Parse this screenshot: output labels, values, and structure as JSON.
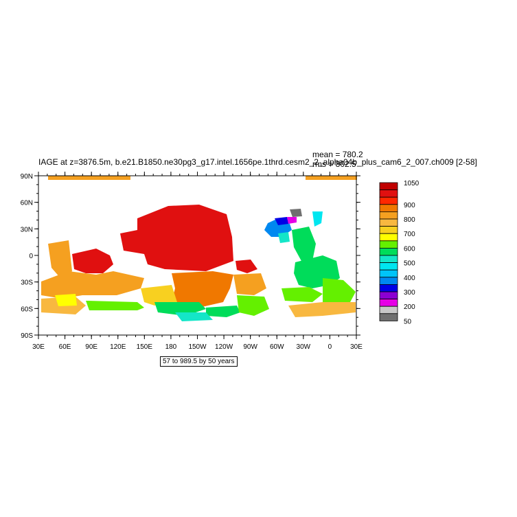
{
  "title": "IAGE at z=3876.5m, b.e21.B1850.ne30pg3_g17.intel.1656pe.1thrd.cesm2_2_alpha04b_plus_cam6_2_007.ch009 [2-58]",
  "stats": {
    "mean": "mean = 780.2",
    "rms": "rms = 802.5"
  },
  "range_label": "57 to 989.5 by 50 years",
  "lon_labels": [
    "30E",
    "60E",
    "90E",
    "120E",
    "150E",
    "180",
    "150W",
    "120W",
    "90W",
    "60W",
    "30W",
    "0",
    "30E"
  ],
  "lat_labels": [
    "90N",
    "60N",
    "30N",
    "0",
    "30S",
    "60S",
    "90S"
  ],
  "colorbar": {
    "colors": [
      "#c00000",
      "#e01010",
      "#ff2800",
      "#f07800",
      "#f5a020",
      "#f8b840",
      "#f8d020",
      "#ffff00",
      "#64f000",
      "#00dc5a",
      "#14e6c8",
      "#00e6f0",
      "#00c4f8",
      "#0088f0",
      "#0000e6",
      "#8c00d2",
      "#e600e6",
      "#c8c8c8",
      "#707070"
    ],
    "labels": [
      {
        "text": "1050",
        "index": 0
      },
      {
        "text": "900",
        "index": 3
      },
      {
        "text": "800",
        "index": 5
      },
      {
        "text": "700",
        "index": 7
      },
      {
        "text": "600",
        "index": 9
      },
      {
        "text": "500",
        "index": 11
      },
      {
        "text": "400",
        "index": 13
      },
      {
        "text": "300",
        "index": 15
      },
      {
        "text": "200",
        "index": 17
      },
      {
        "text": "50",
        "index": 19
      }
    ]
  }
}
